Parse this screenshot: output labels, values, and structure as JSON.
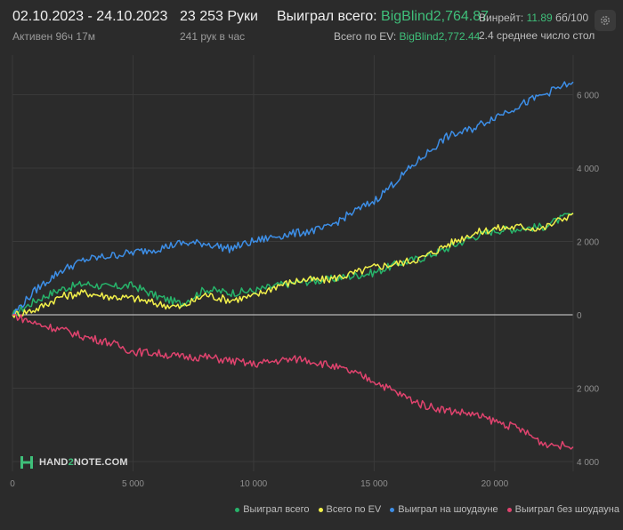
{
  "header": {
    "date_range": "02.10.2023 - 24.10.2023",
    "active_time": "Активен 96ч 17м",
    "hands": "23 253 Руки",
    "hands_per_hour": "241 рук в час",
    "won_label": "Выиграл всего:",
    "won_value": "BigBlind2,764.87",
    "ev_label": "Всего по EV:",
    "ev_value": "BigBlind2,772.44",
    "winrate_label": "Винрейт:",
    "winrate_value": "11.89",
    "winrate_unit": "бб/100",
    "avg_stacks": "2.4 среднее число стол"
  },
  "colors": {
    "won": "#27b36a",
    "ev": "#f2f04a",
    "showdown": "#3d8ee6",
    "non_showdown": "#e0436e"
  },
  "logo": {
    "text_a": "HAND",
    "text_b": "2",
    "text_c": "NOTE.COM"
  },
  "chart_data": {
    "type": "line",
    "xlim": [
      0,
      23253
    ],
    "ylim": [
      -4000,
      6500
    ],
    "x_ticks": [
      0,
      5000,
      10000,
      15000,
      20000
    ],
    "x_tick_labels": [
      "0",
      "5 000",
      "10 000",
      "15 000",
      "20 000"
    ],
    "y_ticks": [
      6000,
      4000,
      2000,
      0,
      -2000,
      -4000
    ],
    "y_tick_labels": [
      "6 000",
      "4 000",
      "2 000",
      "0",
      "2 000",
      "4 000"
    ],
    "x": [
      0,
      1000,
      2000,
      3000,
      4000,
      5000,
      6000,
      7000,
      8000,
      9000,
      10000,
      11000,
      12000,
      13000,
      14000,
      15000,
      16000,
      17000,
      18000,
      19000,
      20000,
      21000,
      22000,
      23253
    ],
    "series": [
      {
        "name": "Выиграл всего",
        "values": [
          0,
          400,
          700,
          850,
          750,
          800,
          500,
          300,
          700,
          600,
          650,
          800,
          900,
          950,
          1050,
          1150,
          1400,
          1550,
          1800,
          2100,
          2300,
          2350,
          2400,
          2765
        ]
      },
      {
        "name": "Всего по EV",
        "values": [
          0,
          150,
          500,
          600,
          500,
          450,
          300,
          200,
          550,
          400,
          500,
          800,
          950,
          950,
          1100,
          1300,
          1400,
          1550,
          1900,
          2200,
          2350,
          2400,
          2350,
          2772
        ]
      },
      {
        "name": "Выиграл на шоудауне",
        "values": [
          0,
          700,
          1200,
          1500,
          1600,
          1700,
          1800,
          1950,
          1950,
          1800,
          2000,
          2150,
          2250,
          2350,
          2750,
          3100,
          3700,
          4300,
          4850,
          5050,
          5400,
          5700,
          6000,
          6350
        ]
      },
      {
        "name": "Выиграл без шоудауна",
        "values": [
          0,
          -250,
          -400,
          -600,
          -750,
          -1000,
          -1050,
          -1150,
          -1150,
          -1250,
          -1350,
          -1250,
          -1200,
          -1350,
          -1550,
          -1800,
          -2150,
          -2450,
          -2600,
          -2700,
          -2900,
          -3100,
          -3500,
          -3600
        ]
      }
    ]
  }
}
